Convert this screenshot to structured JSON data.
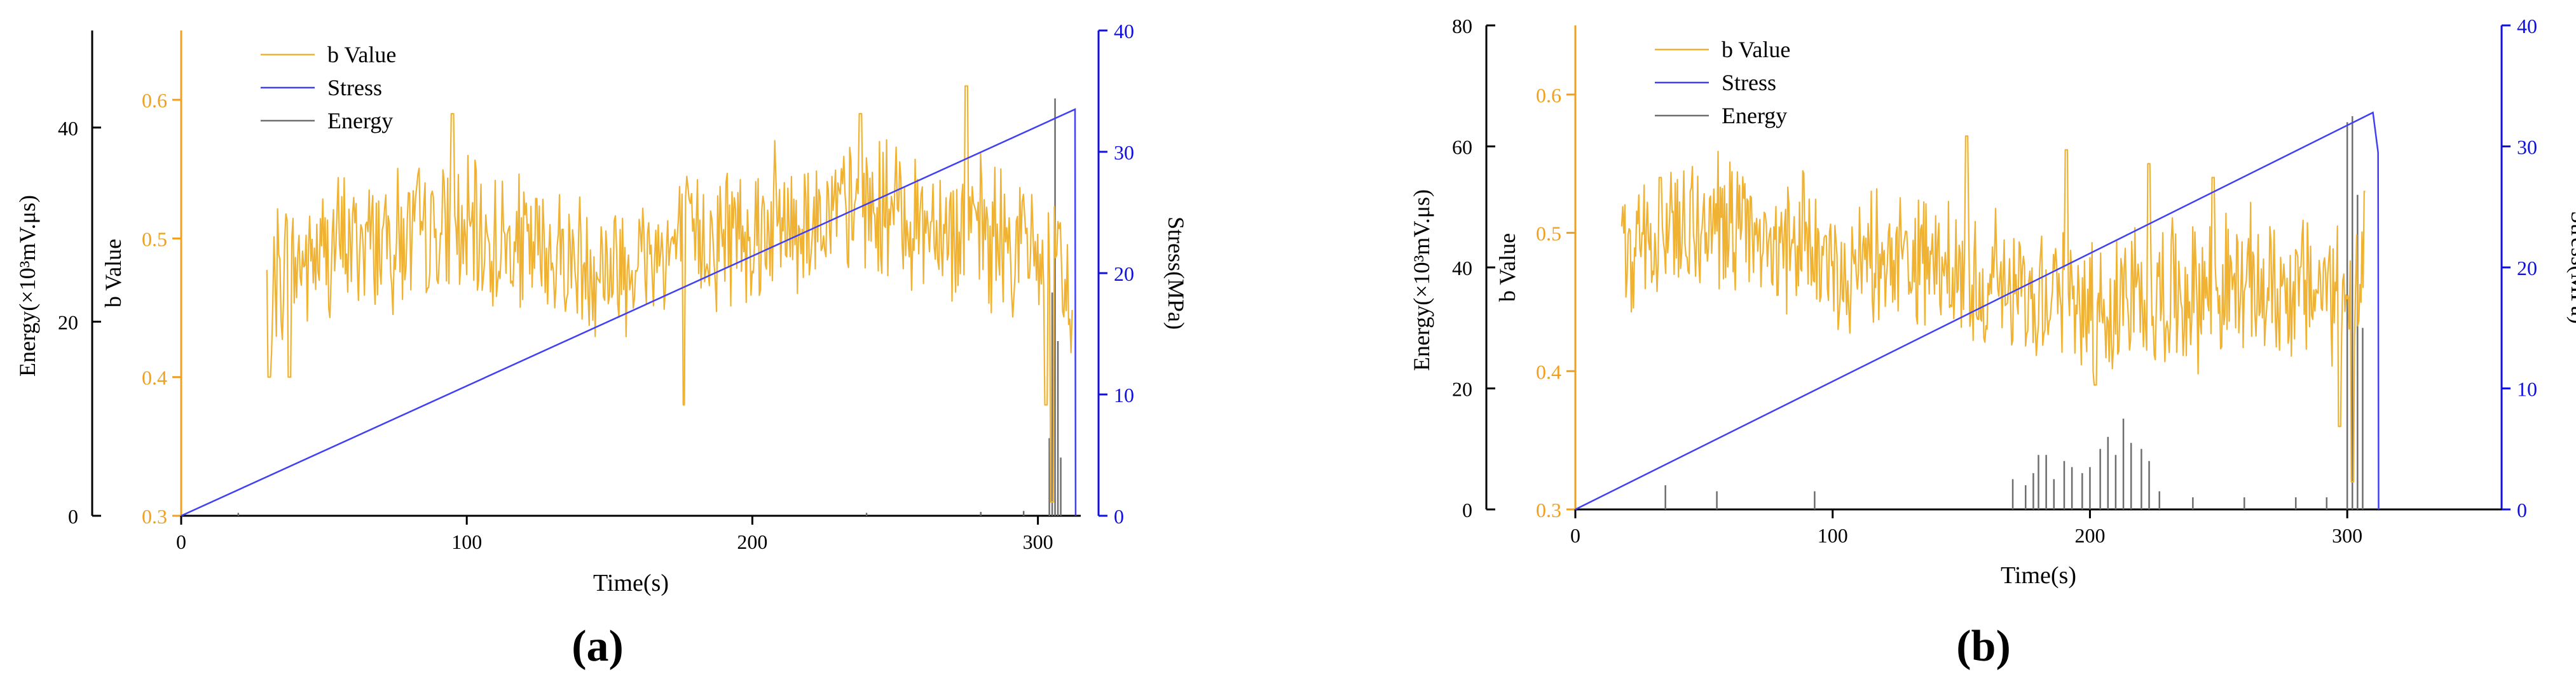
{
  "colors": {
    "b_value": "#F0B232",
    "stress": "#3F3FF5",
    "energy": "#6E6E6E",
    "stress_axis": "#1010E0",
    "b_axis": "#F0A020",
    "black": "#000000"
  },
  "chart_data": [
    {
      "type": "line",
      "panel_label": "(a)",
      "xlabel": "Time(s)",
      "ylabel_energy": "Energy(×10³mV.μs)",
      "ylabel_b": "b Value",
      "ylabel_stress": "Stress(MPa)",
      "x_range": [
        0,
        315
      ],
      "energy_range": [
        0,
        50
      ],
      "b_range": [
        0.3,
        0.65
      ],
      "stress_range": [
        0,
        40
      ],
      "x_ticks": [
        0,
        100,
        200,
        300
      ],
      "energy_ticks": [
        0,
        20,
        40
      ],
      "b_ticks": [
        0.3,
        0.4,
        0.5,
        0.6
      ],
      "stress_ticks": [
        0,
        10,
        20,
        30,
        40
      ],
      "legend": [
        "b Value",
        "Stress",
        "Energy"
      ],
      "series": [
        {
          "name": "Stress",
          "x": [
            0,
            313,
            313.2
          ],
          "y": [
            0,
            33.5,
            0
          ]
        },
        {
          "name": "b Value",
          "x_start": 30,
          "x_end": 312,
          "level_points": [
            [
              30,
              0.47
            ],
            [
              60,
              0.5
            ],
            [
              100,
              0.5
            ],
            [
              150,
              0.48
            ],
            [
              200,
              0.51
            ],
            [
              250,
              0.52
            ],
            [
              300,
              0.49
            ],
            [
              310,
              0.46
            ]
          ],
          "amplitude": 0.045,
          "dips": [
            [
              31,
              0.4
            ],
            [
              38,
              0.4
            ],
            [
              176,
              0.38
            ],
            [
              303,
              0.38
            ],
            [
              305,
              0.31
            ]
          ],
          "spikes": [
            [
              95,
              0.59
            ],
            [
              238,
              0.59
            ],
            [
              275,
              0.61
            ]
          ]
        },
        {
          "name": "Energy",
          "spikes": [
            [
              304,
              8
            ],
            [
              305,
              23
            ],
            [
              306,
              43
            ],
            [
              307,
              18
            ],
            [
              308,
              6
            ],
            [
              295,
              0.5
            ],
            [
              20,
              0.3
            ],
            [
              240,
              0.3
            ],
            [
              280,
              0.4
            ]
          ]
        }
      ]
    },
    {
      "type": "line",
      "panel_label": "(b)",
      "xlabel": "Time(s)",
      "ylabel_energy": "Energy(×10³mV.μs)",
      "ylabel_b": "b Value",
      "ylabel_stress": "Stress(MPa)",
      "x_range": [
        0,
        360
      ],
      "energy_range": [
        0,
        80
      ],
      "b_range": [
        0.3,
        0.65
      ],
      "stress_range": [
        0,
        40
      ],
      "x_ticks": [
        0,
        100,
        200,
        300
      ],
      "energy_ticks": [
        0,
        20,
        40,
        60,
        80
      ],
      "b_ticks": [
        0.3,
        0.4,
        0.5,
        0.6
      ],
      "stress_ticks": [
        0,
        10,
        20,
        30,
        40
      ],
      "legend": [
        "b Value",
        "Stress",
        "Energy"
      ],
      "series": [
        {
          "name": "Stress",
          "x": [
            0,
            310,
            312,
            312.2
          ],
          "y": [
            0,
            32.8,
            29.5,
            0
          ]
        },
        {
          "name": "b Value",
          "x_start": 18,
          "x_end": 307,
          "level_points": [
            [
              18,
              0.48
            ],
            [
              50,
              0.51
            ],
            [
              100,
              0.48
            ],
            [
              150,
              0.47
            ],
            [
              200,
              0.45
            ],
            [
              250,
              0.46
            ],
            [
              300,
              0.46
            ],
            [
              307,
              0.45
            ]
          ],
          "amplitude": 0.045,
          "dips": [
            [
              202,
              0.39
            ],
            [
              297,
              0.36
            ],
            [
              302,
              0.32
            ]
          ],
          "spikes": [
            [
              33,
              0.54
            ],
            [
              152,
              0.57
            ],
            [
              191,
              0.56
            ],
            [
              223,
              0.55
            ],
            [
              248,
              0.54
            ],
            [
              307,
              0.53
            ]
          ]
        },
        {
          "name": "Energy",
          "spikes": [
            [
              35,
              4
            ],
            [
              55,
              3
            ],
            [
              93,
              3
            ],
            [
              170,
              5
            ],
            [
              175,
              4
            ],
            [
              178,
              6
            ],
            [
              180,
              9
            ],
            [
              183,
              9
            ],
            [
              186,
              5
            ],
            [
              190,
              8
            ],
            [
              193,
              7
            ],
            [
              197,
              6
            ],
            [
              200,
              7
            ],
            [
              204,
              10
            ],
            [
              207,
              12
            ],
            [
              210,
              9
            ],
            [
              213,
              15
            ],
            [
              216,
              11
            ],
            [
              220,
              10
            ],
            [
              223,
              8
            ],
            [
              227,
              3
            ],
            [
              240,
              2
            ],
            [
              260,
              2
            ],
            [
              280,
              2
            ],
            [
              292,
              2
            ],
            [
              300,
              64
            ],
            [
              302,
              65
            ],
            [
              304,
              52
            ],
            [
              306,
              30
            ]
          ]
        }
      ]
    }
  ]
}
